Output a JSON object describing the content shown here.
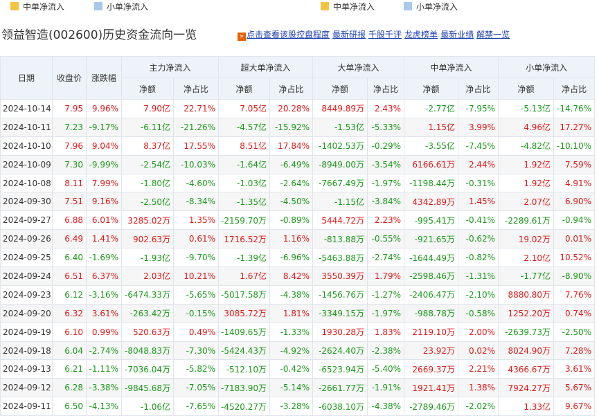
{
  "legend": [
    {
      "label": "中单净流入",
      "color": "#f5c342"
    },
    {
      "label": "小单净流入",
      "color": "#a8c8ec"
    },
    {
      "label": "中单净流入",
      "color": "#f5c342"
    },
    {
      "label": "小单净流入",
      "color": "#a8c8ec"
    }
  ],
  "title": "领益智造(002600)历史资金流向一览",
  "links": [
    "点击查看该股控盘程度",
    "最新研报",
    "千股千评",
    "龙虎榜单",
    "最新业绩",
    "解禁一览"
  ],
  "headers": {
    "date": "日期",
    "close": "收盘价",
    "change": "涨跌幅",
    "groups": [
      "主力净流入",
      "超大单净流入",
      "大单净流入",
      "中单净流入",
      "小单净流入"
    ],
    "amount": "净额",
    "ratio": "净占比"
  },
  "rows": [
    [
      "2024-10-14",
      "7.95",
      "9.96%",
      "7.90亿",
      "22.71%",
      "7.05亿",
      "20.28%",
      "8449.89万",
      "2.43%",
      "-2.77亿",
      "-7.95%",
      "-5.13亿",
      "-14.76%"
    ],
    [
      "2024-10-11",
      "7.23",
      "-9.17%",
      "-6.11亿",
      "-21.26%",
      "-4.57亿",
      "-15.92%",
      "-1.53亿",
      "-5.33%",
      "1.15亿",
      "3.99%",
      "4.96亿",
      "17.27%"
    ],
    [
      "2024-10-10",
      "7.96",
      "9.04%",
      "8.37亿",
      "17.55%",
      "8.51亿",
      "17.84%",
      "-1402.53万",
      "-0.29%",
      "-3.55亿",
      "-7.45%",
      "-4.82亿",
      "-10.10%"
    ],
    [
      "2024-10-09",
      "7.30",
      "-9.99%",
      "-2.54亿",
      "-10.03%",
      "-1.64亿",
      "-6.49%",
      "-8949.00万",
      "-3.54%",
      "6166.61万",
      "2.44%",
      "1.92亿",
      "7.59%"
    ],
    [
      "2024-10-08",
      "8.11",
      "7.99%",
      "-1.80亿",
      "-4.60%",
      "-1.03亿",
      "-2.64%",
      "-7667.49万",
      "-1.97%",
      "-1198.44万",
      "-0.31%",
      "1.92亿",
      "4.91%"
    ],
    [
      "2024-09-30",
      "7.51",
      "9.16%",
      "-2.50亿",
      "-8.34%",
      "-1.35亿",
      "-4.50%",
      "-1.15亿",
      "-3.84%",
      "4342.89万",
      "1.45%",
      "2.07亿",
      "6.90%"
    ],
    [
      "2024-09-27",
      "6.88",
      "6.01%",
      "3285.02万",
      "1.35%",
      "-2159.70万",
      "-0.89%",
      "5444.72万",
      "2.23%",
      "-995.41万",
      "-0.41%",
      "-2289.61万",
      "-0.94%"
    ],
    [
      "2024-09-26",
      "6.49",
      "1.41%",
      "902.63万",
      "0.61%",
      "1716.52万",
      "1.16%",
      "-813.88万",
      "-0.55%",
      "-921.65万",
      "-0.62%",
      "19.02万",
      "0.01%"
    ],
    [
      "2024-09-25",
      "6.40",
      "-1.69%",
      "-1.93亿",
      "-9.70%",
      "-1.39亿",
      "-6.96%",
      "-5463.88万",
      "-2.74%",
      "-1644.49万",
      "-0.82%",
      "2.10亿",
      "10.52%"
    ],
    [
      "2024-09-24",
      "6.51",
      "6.37%",
      "2.03亿",
      "10.21%",
      "1.67亿",
      "8.42%",
      "3550.39万",
      "1.79%",
      "-2598.46万",
      "-1.31%",
      "-1.77亿",
      "-8.90%"
    ],
    [
      "2024-09-23",
      "6.12",
      "-3.16%",
      "-6474.33万",
      "-5.65%",
      "-5017.58万",
      "-4.38%",
      "-1456.76万",
      "-1.27%",
      "-2406.47万",
      "-2.10%",
      "8880.80万",
      "7.76%"
    ],
    [
      "2024-09-20",
      "6.32",
      "3.61%",
      "-263.42万",
      "-0.15%",
      "3085.72万",
      "1.81%",
      "-3349.15万",
      "-1.97%",
      "-988.78万",
      "-0.58%",
      "1252.20万",
      "0.74%"
    ],
    [
      "2024-09-19",
      "6.10",
      "0.99%",
      "520.63万",
      "0.49%",
      "-1409.65万",
      "-1.33%",
      "1930.28万",
      "1.83%",
      "2119.10万",
      "2.00%",
      "-2639.73万",
      "-2.50%"
    ],
    [
      "2024-09-18",
      "6.04",
      "-2.74%",
      "-8048.83万",
      "-7.30%",
      "-5424.43万",
      "-4.92%",
      "-2624.40万",
      "-2.38%",
      "23.92万",
      "0.02%",
      "8024.90万",
      "7.28%"
    ],
    [
      "2024-09-13",
      "6.21",
      "-1.11%",
      "-7036.04万",
      "-5.82%",
      "-512.10万",
      "-0.42%",
      "-6523.94万",
      "-5.40%",
      "2669.37万",
      "2.21%",
      "4366.67万",
      "3.61%"
    ],
    [
      "2024-09-12",
      "6.28",
      "-3.38%",
      "-9845.68万",
      "-7.05%",
      "-7183.90万",
      "-5.14%",
      "-2661.77万",
      "-1.91%",
      "1921.41万",
      "1.38%",
      "7924.27万",
      "5.67%"
    ],
    [
      "2024-09-11",
      "6.50",
      "-4.13%",
      "-1.06亿",
      "-7.65%",
      "-4520.27万",
      "-3.28%",
      "-6038.10万",
      "-4.38%",
      "-2789.46万",
      "-2.02%",
      "1.33亿",
      "9.67%"
    ]
  ],
  "colors": {
    "up": "#e01818",
    "down": "#1a9a1a",
    "header_bg": "#eef3f9",
    "link": "#1a3cb0"
  }
}
